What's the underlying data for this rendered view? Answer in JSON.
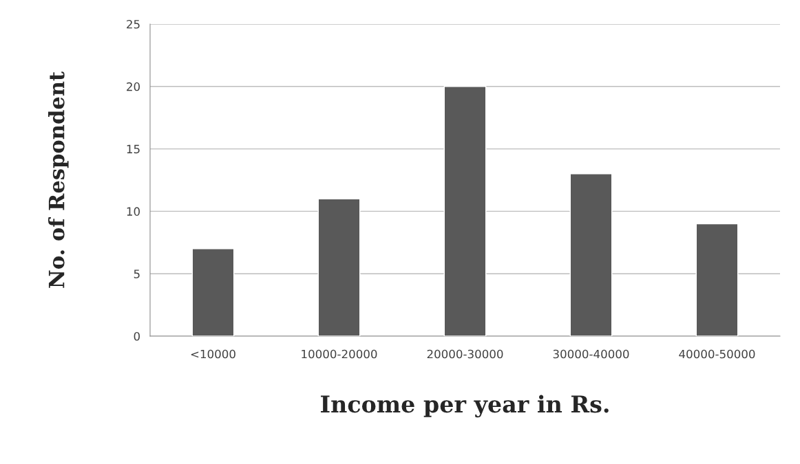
{
  "chart_data": {
    "type": "bar",
    "categories": [
      "<10000",
      "10000-20000",
      "20000-30000",
      "30000-40000",
      "40000-50000"
    ],
    "values": [
      7,
      11,
      20,
      13,
      9
    ],
    "color": "#595959",
    "xlabel": "Income per year in Rs.",
    "ylabel": "No. of Respondent",
    "ylim": [
      0,
      25
    ],
    "yticks": [
      0,
      5,
      10,
      15,
      20,
      25
    ],
    "grid": "y",
    "legend": false
  }
}
